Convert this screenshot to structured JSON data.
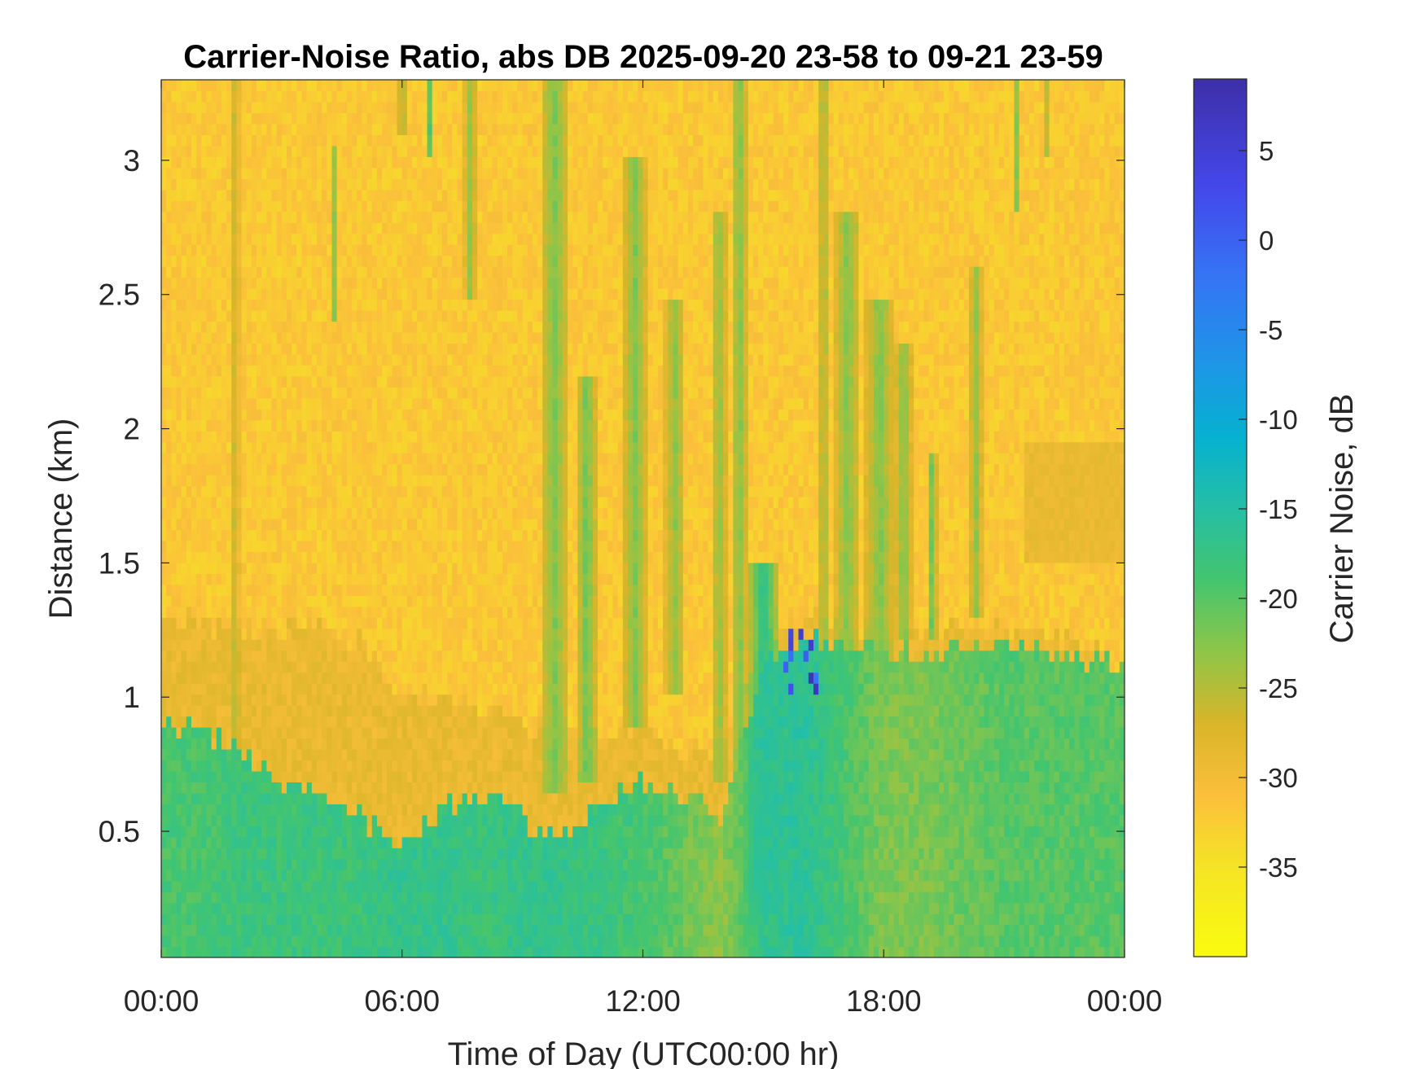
{
  "chart_data": {
    "type": "heatmap",
    "title": "Carrier-Noise Ratio, abs DB 2025-09-20 23-58 to 09-21 23-59",
    "xlabel": "Time of Day (UTC00:00 hr)",
    "ylabel": "Distance (km)",
    "colorbar_label": "Carrier Noise, dB",
    "x_range_hours": [
      0,
      24
    ],
    "y_range_km": [
      0.03,
      3.3
    ],
    "color_range_db": [
      -40,
      9
    ],
    "x_ticks": [
      {
        "value": 0,
        "label": "00:00"
      },
      {
        "value": 6,
        "label": "06:00"
      },
      {
        "value": 12,
        "label": "12:00"
      },
      {
        "value": 18,
        "label": "18:00"
      },
      {
        "value": 24,
        "label": "00:00"
      }
    ],
    "y_ticks": [
      {
        "value": 0.5,
        "label": "0.5"
      },
      {
        "value": 1,
        "label": "1"
      },
      {
        "value": 1.5,
        "label": "1.5"
      },
      {
        "value": 2,
        "label": "2"
      },
      {
        "value": 2.5,
        "label": "2.5"
      },
      {
        "value": 3,
        "label": "3"
      }
    ],
    "colorbar_ticks": [
      {
        "value": 5,
        "label": "5"
      },
      {
        "value": 0,
        "label": "0"
      },
      {
        "value": -5,
        "label": "-5"
      },
      {
        "value": -10,
        "label": "-10"
      },
      {
        "value": -15,
        "label": "-15"
      },
      {
        "value": -20,
        "label": "-20"
      },
      {
        "value": -25,
        "label": "-25"
      },
      {
        "value": -30,
        "label": "-30"
      },
      {
        "value": -35,
        "label": "-35"
      }
    ],
    "colormap": "parula-reversed",
    "colormap_stops": [
      {
        "db": -40,
        "color": "#f9fb0e"
      },
      {
        "db": -35,
        "color": "#f5e425"
      },
      {
        "db": -31,
        "color": "#fbbf3b"
      },
      {
        "db": -27,
        "color": "#d9b529"
      },
      {
        "db": -23,
        "color": "#8fc548"
      },
      {
        "db": -19,
        "color": "#44c56e"
      },
      {
        "db": -15,
        "color": "#25bfa5"
      },
      {
        "db": -11,
        "color": "#06b1d0"
      },
      {
        "db": -7,
        "color": "#1d96e6"
      },
      {
        "db": -2,
        "color": "#3574f5"
      },
      {
        "db": 3,
        "color": "#4447ea"
      },
      {
        "db": 9,
        "color": "#3d2fa8"
      }
    ],
    "profile_hours": [
      0,
      1,
      2,
      3,
      4,
      5,
      6,
      7,
      8,
      9,
      10,
      11,
      12,
      13,
      14,
      15,
      16,
      17,
      18,
      19,
      20,
      21,
      22,
      23,
      24
    ],
    "boundary_layer_top_km": [
      0.9,
      0.88,
      0.78,
      0.68,
      0.62,
      0.55,
      0.45,
      0.58,
      0.62,
      0.55,
      0.48,
      0.62,
      0.68,
      0.65,
      0.55,
      1.15,
      1.22,
      1.2,
      1.18,
      1.15,
      1.18,
      1.2,
      1.18,
      1.15,
      1.1
    ],
    "transition_layer_top_km": [
      1.3,
      1.28,
      1.26,
      1.25,
      1.25,
      1.2,
      1.0,
      1.0,
      0.95,
      0.9,
      0.9,
      0.85,
      0.9,
      0.8,
      0.8,
      1.25,
      1.3,
      1.28,
      1.25,
      1.25,
      1.25,
      1.25,
      1.25,
      1.2,
      1.1
    ],
    "background_db": -32,
    "boundary_layer_db": [
      -19,
      -19,
      -18,
      -18,
      -18,
      -18,
      -17,
      -17,
      -18,
      -17,
      -17,
      -18,
      -19,
      -21,
      -23,
      -17,
      -16,
      -19,
      -22,
      -22,
      -21,
      -20,
      -20,
      -20,
      -20
    ],
    "transition_db": -29,
    "plumes": [
      {
        "x_hours": 1.85,
        "bottom_km": 0.75,
        "top_km": 3.3,
        "width_hours": 0.09,
        "db": -25
      },
      {
        "x_hours": 4.3,
        "bottom_km": 2.4,
        "top_km": 3.05,
        "width_hours": 0.06,
        "db": -22
      },
      {
        "x_hours": 6.0,
        "bottom_km": 3.1,
        "top_km": 3.3,
        "width_hours": 0.08,
        "db": -21
      },
      {
        "x_hours": 6.7,
        "bottom_km": 3.0,
        "top_km": 3.3,
        "width_hours": 0.05,
        "db": -18
      },
      {
        "x_hours": 7.7,
        "bottom_km": 2.5,
        "top_km": 3.3,
        "width_hours": 0.14,
        "db": -23
      },
      {
        "x_hours": 9.8,
        "bottom_km": 0.65,
        "top_km": 3.3,
        "width_hours": 0.35,
        "db": -22
      },
      {
        "x_hours": 10.6,
        "bottom_km": 0.7,
        "top_km": 2.2,
        "width_hours": 0.25,
        "db": -21
      },
      {
        "x_hours": 11.8,
        "bottom_km": 0.9,
        "top_km": 3.0,
        "width_hours": 0.3,
        "db": -22
      },
      {
        "x_hours": 12.8,
        "bottom_km": 1.0,
        "top_km": 2.5,
        "width_hours": 0.25,
        "db": -23
      },
      {
        "x_hours": 13.9,
        "bottom_km": 0.7,
        "top_km": 2.8,
        "width_hours": 0.2,
        "db": -23
      },
      {
        "x_hours": 14.4,
        "bottom_km": 0.6,
        "top_km": 3.3,
        "width_hours": 0.2,
        "db": -22
      },
      {
        "x_hours": 15.0,
        "bottom_km": 0.2,
        "top_km": 1.5,
        "width_hours": 0.35,
        "db": -16
      },
      {
        "x_hours": 16.5,
        "bottom_km": 1.0,
        "top_km": 3.3,
        "width_hours": 0.12,
        "db": -23
      },
      {
        "x_hours": 17.1,
        "bottom_km": 1.0,
        "top_km": 2.8,
        "width_hours": 0.3,
        "db": -22
      },
      {
        "x_hours": 17.9,
        "bottom_km": 1.0,
        "top_km": 2.5,
        "width_hours": 0.35,
        "db": -22
      },
      {
        "x_hours": 18.5,
        "bottom_km": 1.2,
        "top_km": 2.3,
        "width_hours": 0.2,
        "db": -22
      },
      {
        "x_hours": 19.2,
        "bottom_km": 1.2,
        "top_km": 1.9,
        "width_hours": 0.12,
        "db": -21
      },
      {
        "x_hours": 20.3,
        "bottom_km": 1.3,
        "top_km": 2.6,
        "width_hours": 0.15,
        "db": -23
      },
      {
        "x_hours": 21.3,
        "bottom_km": 2.8,
        "top_km": 3.3,
        "width_hours": 0.06,
        "db": -22
      },
      {
        "x_hours": 22.1,
        "bottom_km": 3.0,
        "top_km": 3.3,
        "width_hours": 0.06,
        "db": -22
      }
    ],
    "strong_returns": {
      "x_hours": [
        15.5,
        16.4
      ],
      "y_km": [
        1.0,
        1.25
      ],
      "db_range": [
        -4,
        9
      ]
    },
    "elevated_layer": {
      "x_hours": [
        21.5,
        24
      ],
      "y_km": [
        1.5,
        1.95
      ],
      "db": -29
    }
  }
}
